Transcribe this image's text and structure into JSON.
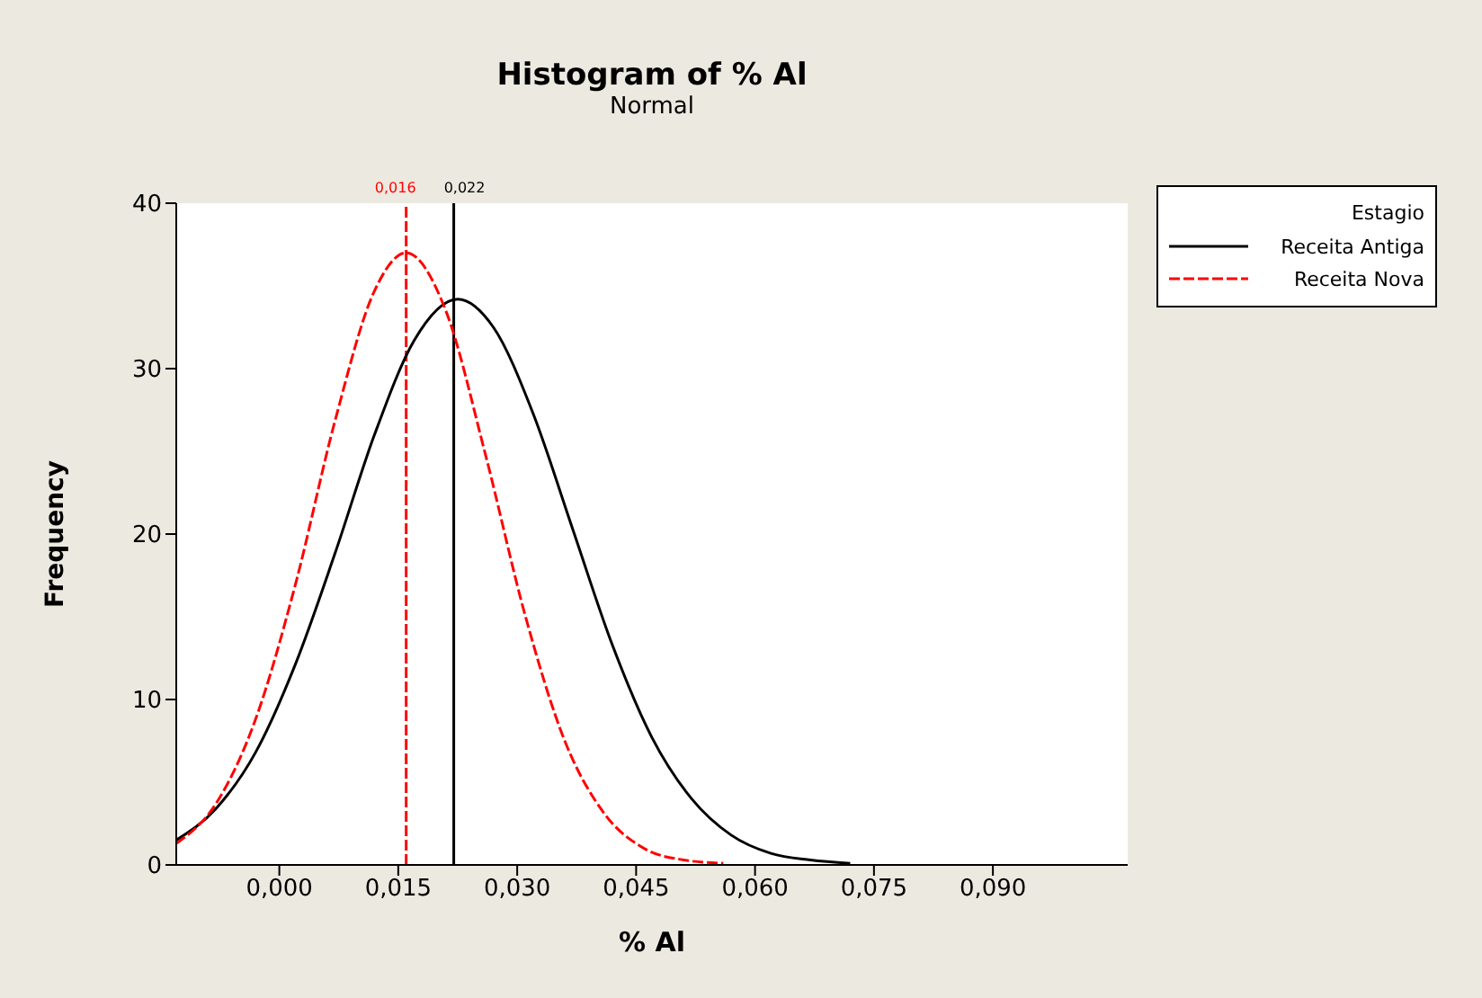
{
  "chart_data": {
    "type": "line",
    "title": "Histogram of % Al",
    "subtitle": "Normal",
    "xlabel": "% Al",
    "ylabel": "Frequency",
    "legend_title": "Estagio",
    "legend": "right",
    "grid": false,
    "marker": "none",
    "xlim": [
      -0.013,
      0.107
    ],
    "xticks": [
      {
        "value": 0,
        "label": "0,000"
      },
      {
        "value": 0.015,
        "label": "0,015"
      },
      {
        "value": 0.03,
        "label": "0,030"
      },
      {
        "value": 0.045,
        "label": "0,045"
      },
      {
        "value": 0.06,
        "label": "0,060"
      },
      {
        "value": 0.075,
        "label": "0,075"
      },
      {
        "value": 0.09,
        "label": "0,090"
      }
    ],
    "ylim": [
      0,
      40
    ],
    "yticks": [
      0,
      10,
      20,
      30,
      40
    ],
    "series": [
      {
        "name": "Receita Antiga",
        "color": "#000000",
        "line_style": "solid",
        "x": [
          -0.013,
          -0.008,
          -0.003,
          0.002,
          0.007,
          0.012,
          0.017,
          0.0225,
          0.027,
          0.032,
          0.037,
          0.042,
          0.047,
          0.052,
          0.057,
          0.062,
          0.067,
          0.072
        ],
        "values": [
          1.5,
          3.4,
          6.8,
          12.1,
          18.8,
          26.0,
          31.7,
          34.2,
          32.5,
          27.3,
          20.3,
          13.3,
          7.7,
          4.0,
          1.8,
          0.7,
          0.3,
          0.1
        ]
      },
      {
        "name": "Receita Nova",
        "color": "#ff0000",
        "line_style": "dashed",
        "x": [
          -0.013,
          -0.008,
          -0.003,
          0.002,
          0.007,
          0.012,
          0.016,
          0.021,
          0.026,
          0.031,
          0.036,
          0.041,
          0.046,
          0.051,
          0.056
        ],
        "values": [
          1.3,
          3.7,
          8.8,
          16.9,
          26.8,
          34.7,
          37.0,
          33.5,
          24.8,
          15.1,
          7.5,
          3.1,
          1.0,
          0.3,
          0.1
        ]
      }
    ],
    "ref_lines": [
      {
        "axis": "x",
        "value": 0.016,
        "label": "0,016",
        "color": "#ff0000",
        "line_style": "dashed"
      },
      {
        "axis": "x",
        "value": 0.022,
        "label": "0,022",
        "color": "#000000",
        "line_style": "solid"
      }
    ]
  }
}
